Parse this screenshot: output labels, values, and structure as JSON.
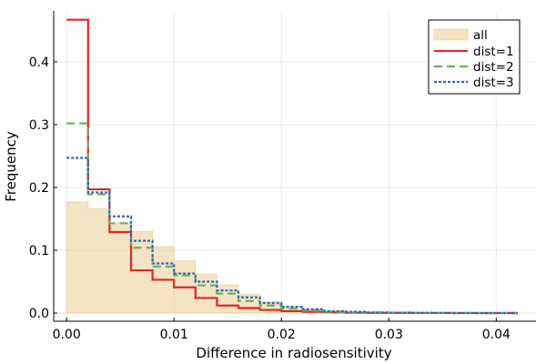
{
  "chart_data": {
    "type": "step-histogram",
    "title": "",
    "xlabel": "Difference in radiosensitivity",
    "ylabel": "Frequency",
    "xlim": [
      -0.0012,
      0.0437
    ],
    "ylim": [
      -0.013,
      0.481
    ],
    "xticks": [
      0.0,
      0.01,
      0.02,
      0.03,
      0.04
    ],
    "xtick_labels": [
      "0.00",
      "0.01",
      "0.02",
      "0.03",
      "0.04"
    ],
    "yticks": [
      0.0,
      0.1,
      0.2,
      0.3,
      0.4
    ],
    "ytick_labels": [
      "0.0",
      "0.1",
      "0.2",
      "0.3",
      "0.4"
    ],
    "grid": true,
    "legend_position": "top-right",
    "bin_edges": [
      0.0,
      0.002,
      0.004,
      0.006,
      0.008,
      0.01,
      0.012,
      0.014,
      0.016,
      0.018,
      0.02,
      0.022,
      0.024,
      0.026,
      0.028,
      0.03,
      0.032,
      0.034,
      0.036,
      0.038,
      0.04,
      0.042
    ],
    "series": [
      {
        "name": "all",
        "style": "filled",
        "color": "#E9C98A",
        "values": [
          0.177,
          0.166,
          0.143,
          0.13,
          0.106,
          0.083,
          0.062,
          0.045,
          0.03,
          0.018,
          0.01,
          0.006,
          0.003,
          0.002,
          0.001,
          0.001,
          0.0005,
          0.0003,
          0.0002,
          0.0001,
          0.0001
        ]
      },
      {
        "name": "dist=1",
        "style": "solid",
        "color": "#E32626",
        "values": [
          0.467,
          0.197,
          0.129,
          0.068,
          0.053,
          0.041,
          0.024,
          0.012,
          0.008,
          0.005,
          0.003,
          0.002,
          0.001,
          0.0005,
          0.0003,
          0.0002,
          0.0001,
          0.0001,
          0.0,
          0.0,
          0.0
        ]
      },
      {
        "name": "dist=2",
        "style": "dashed",
        "color": "#6BB35B",
        "values": [
          0.302,
          0.189,
          0.143,
          0.104,
          0.074,
          0.06,
          0.044,
          0.031,
          0.019,
          0.012,
          0.007,
          0.004,
          0.002,
          0.001,
          0.001,
          0.0005,
          0.0003,
          0.0001,
          0.0,
          0.0,
          0.0
        ]
      },
      {
        "name": "dist=3",
        "style": "dotted",
        "color": "#2D66C3",
        "values": [
          0.247,
          0.192,
          0.154,
          0.115,
          0.079,
          0.063,
          0.05,
          0.036,
          0.025,
          0.016,
          0.01,
          0.006,
          0.003,
          0.002,
          0.001,
          0.0007,
          0.0004,
          0.0002,
          0.0001,
          0.0,
          0.0
        ]
      }
    ]
  }
}
